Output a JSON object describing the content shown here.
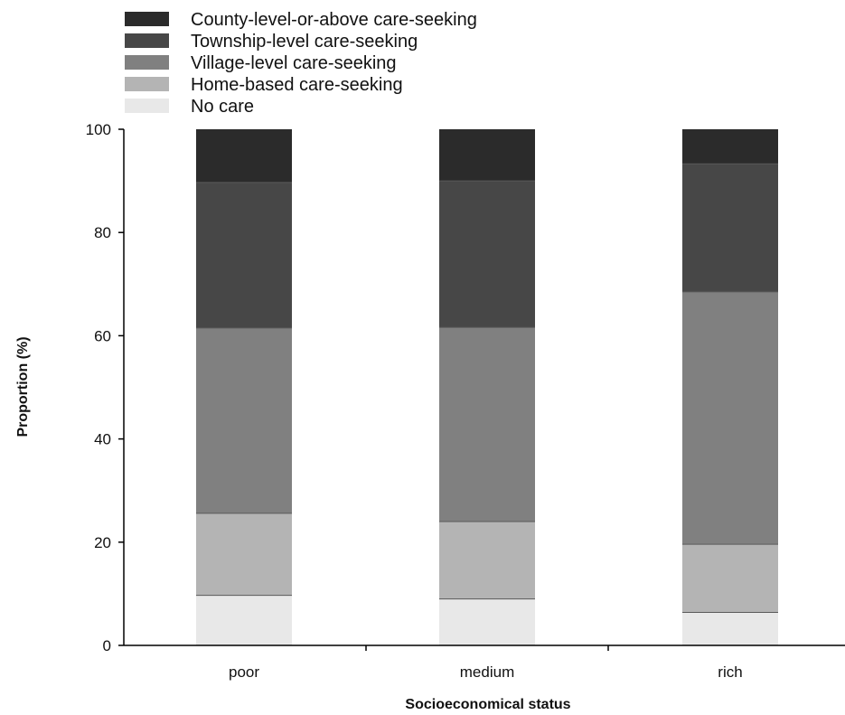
{
  "chart_data": {
    "type": "bar",
    "stacked": true,
    "xlabel": "Socioeconomical status",
    "ylabel": "Proportion (%)",
    "ylim": [
      0,
      100
    ],
    "yticks": [
      "0",
      "20",
      "40",
      "60",
      "80",
      "100"
    ],
    "categories": [
      "poor",
      "medium",
      "rich"
    ],
    "legend_position": "top-left",
    "series": [
      {
        "name": "No care",
        "color": "#e8e8e8",
        "values": [
          9.7,
          9.0,
          6.4
        ]
      },
      {
        "name": "Home-based care-seeking",
        "color": "#b4b4b4",
        "values": [
          15.9,
          15.0,
          13.2
        ]
      },
      {
        "name": "Village-level care-seeking",
        "color": "#808080",
        "values": [
          35.9,
          37.6,
          48.9
        ]
      },
      {
        "name": "Township-level care-seeking",
        "color": "#474747",
        "values": [
          28.2,
          28.4,
          24.8
        ]
      },
      {
        "name": "County-level-or-above care-seeking",
        "color": "#2b2b2b",
        "values": [
          10.3,
          10.0,
          6.7
        ]
      }
    ]
  }
}
